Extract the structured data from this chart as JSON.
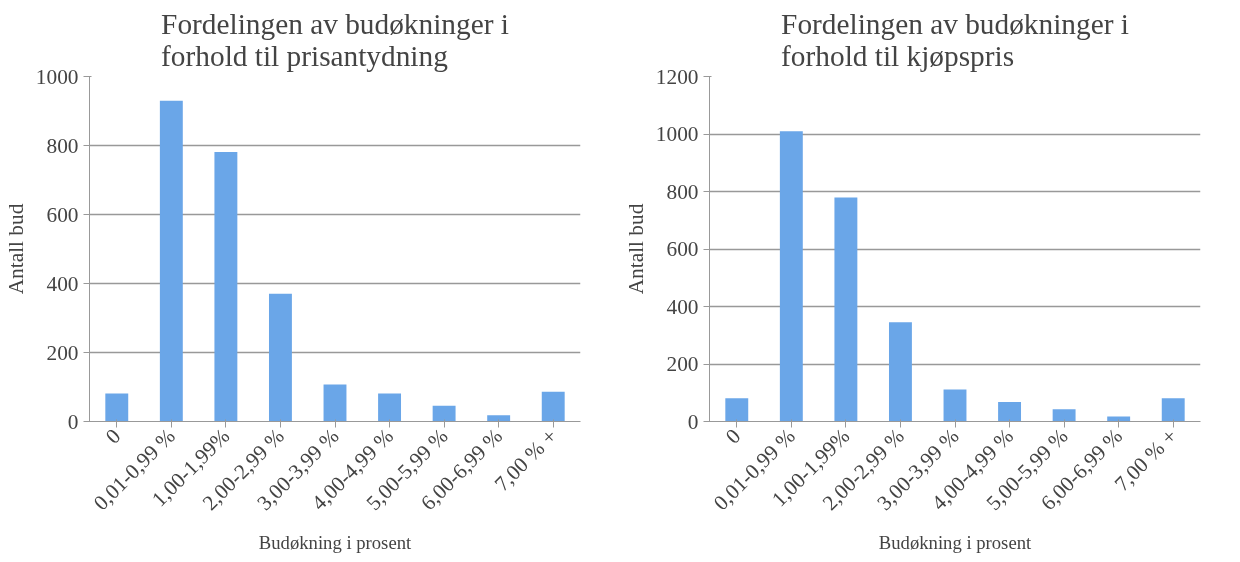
{
  "chart_data": [
    {
      "type": "bar",
      "title": "Fordelingen av budøkninger i forhold til prisantydning",
      "xlabel": "Budøkning i prosent",
      "ylabel": "Antall bud",
      "categories": [
        "0",
        "0,01-0,99 %",
        "1,00-1,99%",
        "2,00-2,99 %",
        "3,00-3,99 %",
        "4,00-4,99 %",
        "5,00-5,99 %",
        "6,00-6,99 %",
        "7,00 % +"
      ],
      "values": [
        81,
        930,
        781,
        370,
        107,
        81,
        46,
        18,
        86
      ],
      "color": "#6aa6e8",
      "ylim": [
        0,
        1000
      ],
      "yticks": [
        0,
        200,
        400,
        600,
        800,
        1000
      ],
      "grid": "y"
    },
    {
      "type": "bar",
      "title": "Fordelingen av budøkninger i forhold til kjøpspris",
      "xlabel": "Budøkning i prosent",
      "ylabel": "Antall bud",
      "categories": [
        "0",
        "0,01-0,99 %",
        "1,00-1,99%",
        "2,00-2,99 %",
        "3,00-3,99 %",
        "4,00-4,99 %",
        "5,00-5,99 %",
        "6,00-6,99 %",
        "7,00 % +"
      ],
      "values": [
        81,
        1010,
        779,
        345,
        111,
        68,
        43,
        17,
        81
      ],
      "color": "#6aa6e8",
      "ylim": [
        0,
        1200
      ],
      "yticks": [
        0,
        200,
        400,
        600,
        800,
        1000,
        1200
      ],
      "grid": "y"
    }
  ]
}
